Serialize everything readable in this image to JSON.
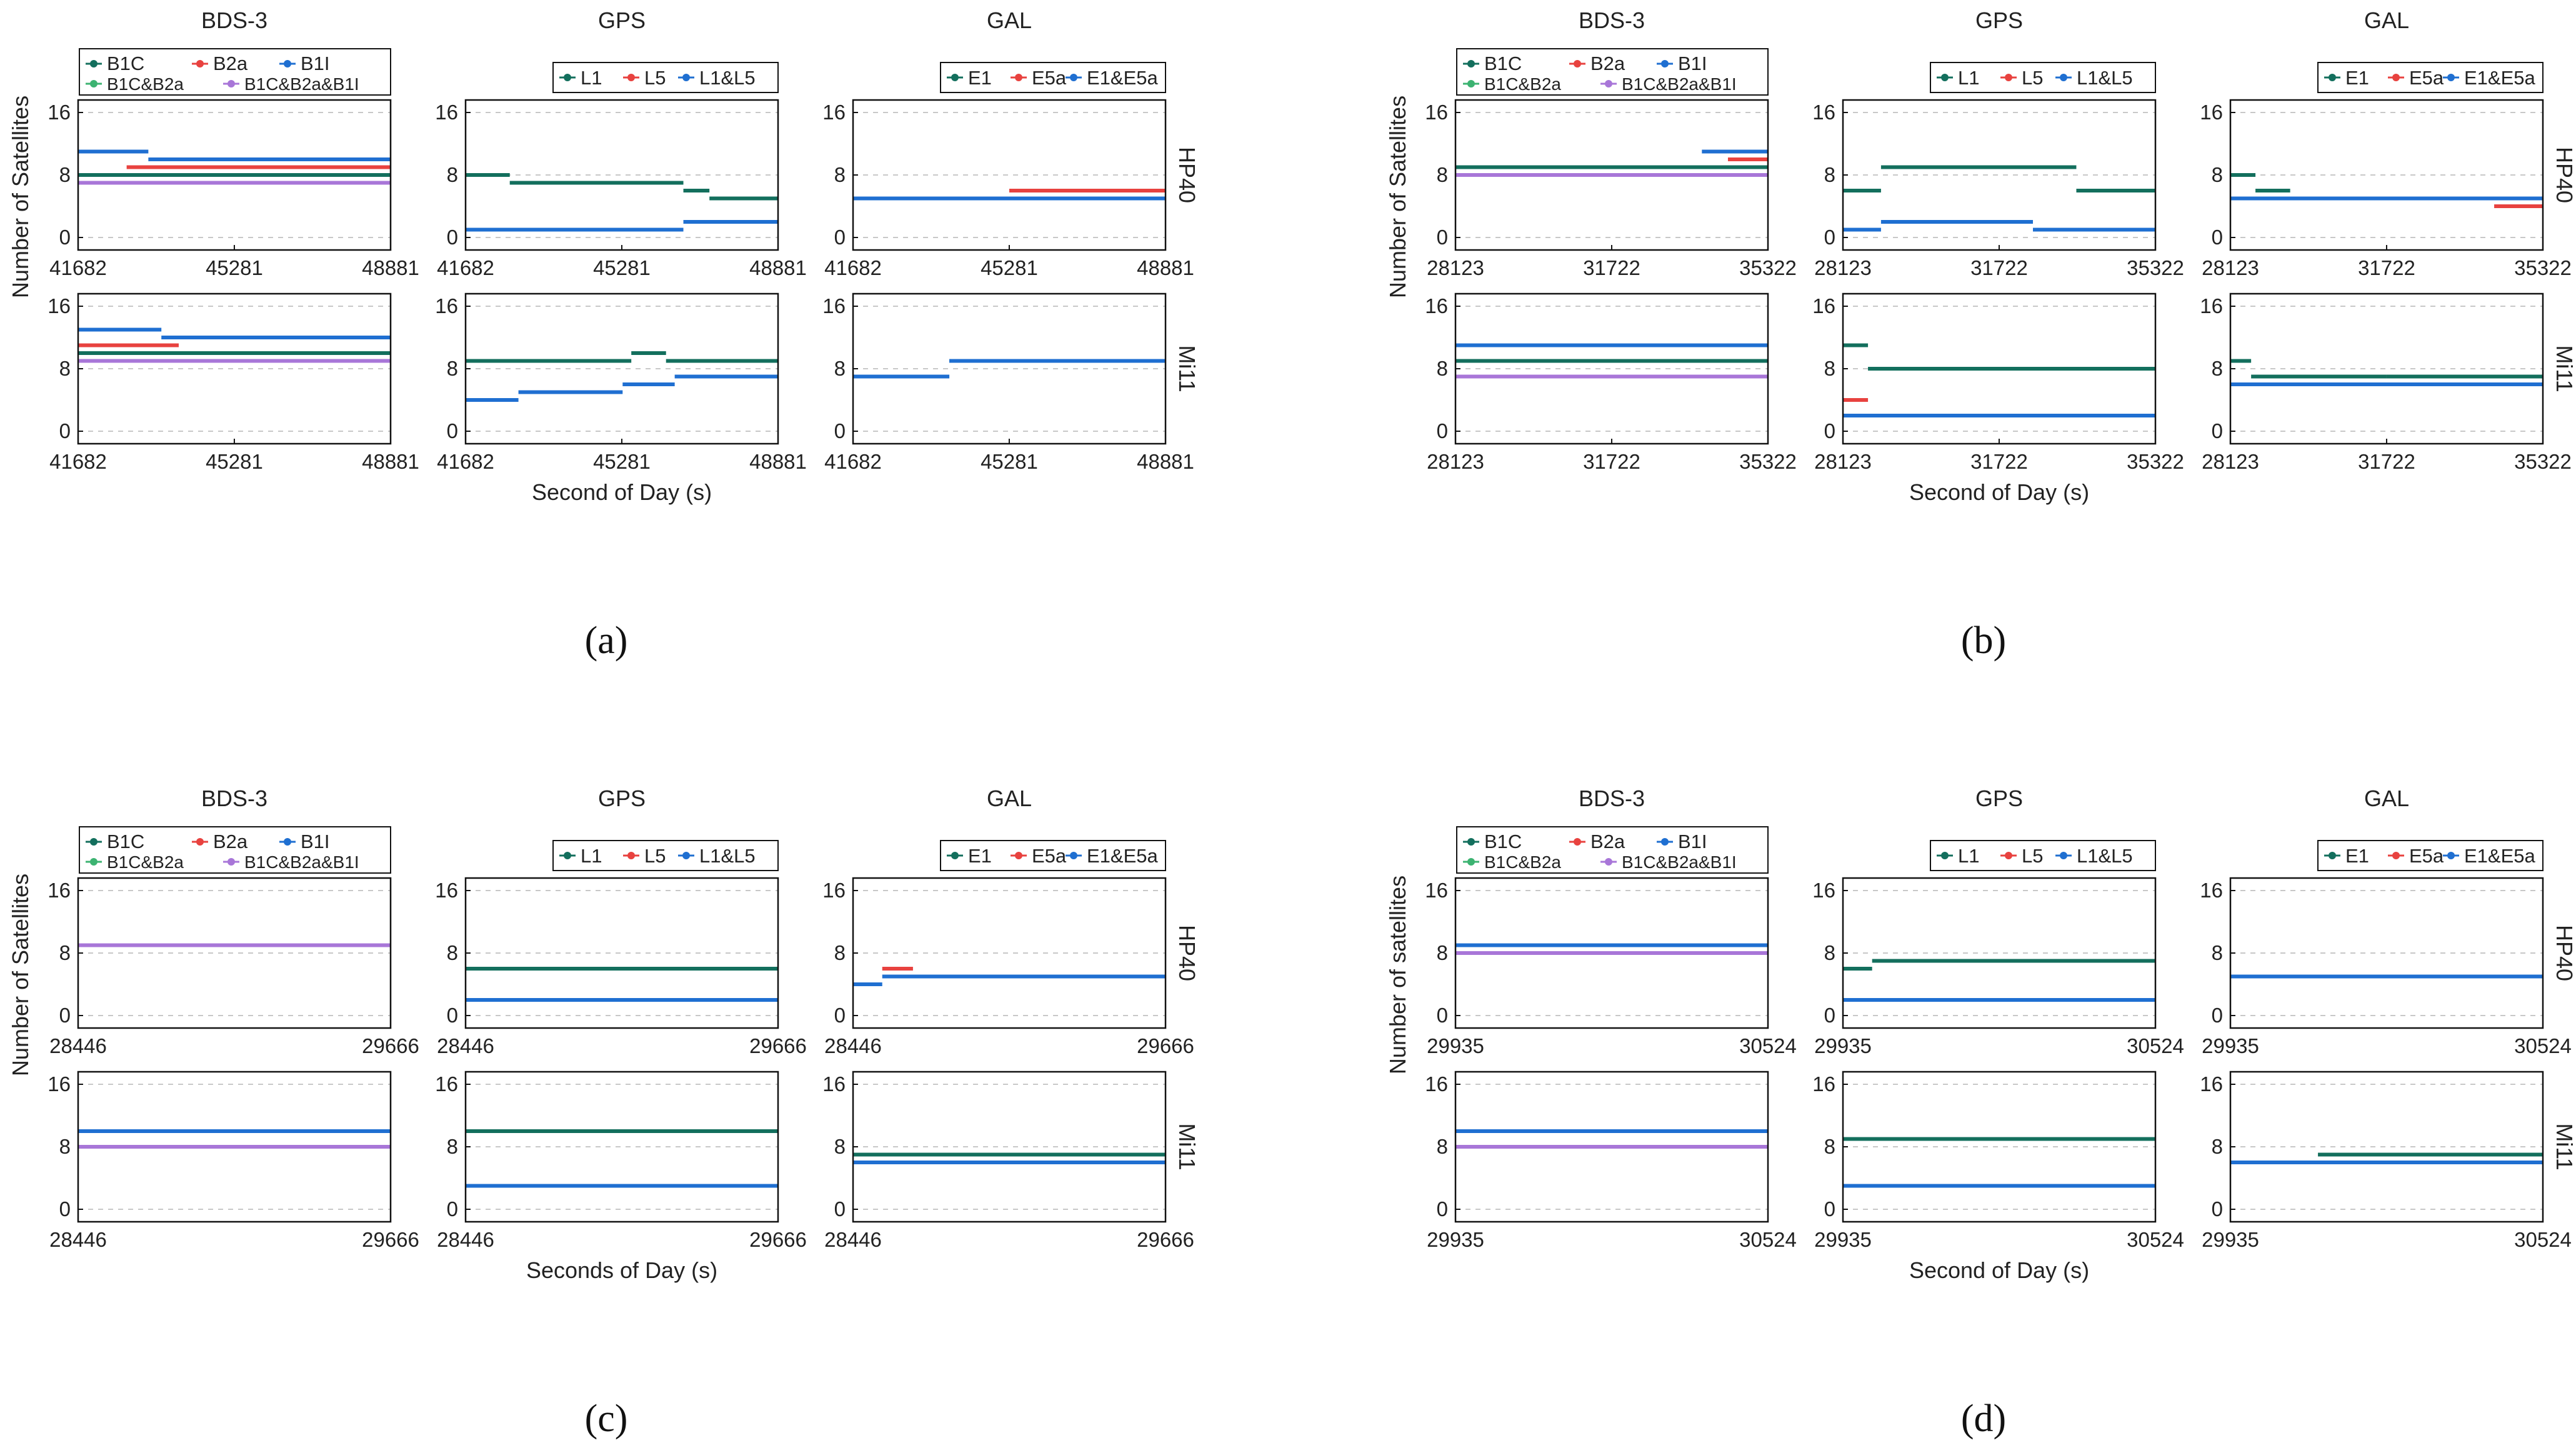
{
  "colors": {
    "B1C": "#136f5d",
    "B2a": "#e8423f",
    "B1I": "#1f6fd1",
    "B1C&B2a": "#3cb371",
    "B1C&B2a&B1I": "#a876d8",
    "L1": "#136f5d",
    "L5": "#e8423f",
    "L1&L5": "#1f6fd1",
    "E1": "#136f5d",
    "E5a": "#e8423f",
    "E1&E5a": "#1f6fd1"
  },
  "column_titles": [
    "BDS-3",
    "GPS",
    "GAL"
  ],
  "receivers": [
    "HP40",
    "Mi11"
  ],
  "y_label_default": "Number of Satellites",
  "y_ticks": [
    "0",
    "8",
    "16"
  ],
  "chart_data": [
    {
      "type": "scatter",
      "panel_label": "(a)",
      "x_label": "Second of Day (s)",
      "y_label": "Number of Satellites",
      "x_range": [
        41682,
        48881
      ],
      "x_ticks": [
        "41682",
        "45281",
        "48881"
      ],
      "ylim": [
        0,
        16
      ],
      "legends": {
        "BDS-3": [
          "B1C",
          "B2a",
          "B1I",
          "B1C&B2a",
          "B1C&B2a&B1I"
        ],
        "GPS": [
          "L1",
          "L5",
          "L1&L5"
        ],
        "GAL": [
          "E1",
          "E5a",
          "E1&E5a"
        ]
      },
      "series": {
        "HP40": {
          "BDS-3": [
            {
              "name": "B1I",
              "segments": [
                [
                  41682,
                  43300,
                  11
                ],
                [
                  43300,
                  48881,
                  10
                ]
              ]
            },
            {
              "name": "B2a",
              "segments": [
                [
                  41682,
                  42800,
                  8
                ],
                [
                  42800,
                  48881,
                  9
                ]
              ]
            },
            {
              "name": "B1C",
              "segments": [
                [
                  41682,
                  48881,
                  8
                ]
              ]
            },
            {
              "name": "B1C&B2a&B1I",
              "segments": [
                [
                  41682,
                  48881,
                  7
                ]
              ]
            }
          ],
          "GPS": [
            {
              "name": "L1",
              "segments": [
                [
                  41682,
                  42700,
                  8
                ],
                [
                  42700,
                  46700,
                  7
                ],
                [
                  46700,
                  47300,
                  6
                ],
                [
                  47300,
                  48881,
                  5
                ]
              ]
            },
            {
              "name": "L1&L5",
              "segments": [
                [
                  41682,
                  46700,
                  1
                ],
                [
                  46700,
                  48881,
                  2
                ]
              ]
            }
          ],
          "GAL": [
            {
              "name": "E5a",
              "segments": [
                [
                  45281,
                  48881,
                  6
                ]
              ]
            },
            {
              "name": "E1&E5a",
              "segments": [
                [
                  41682,
                  48881,
                  5
                ]
              ]
            }
          ]
        },
        "Mi11": {
          "BDS-3": [
            {
              "name": "B1I",
              "segments": [
                [
                  41682,
                  43600,
                  13
                ],
                [
                  43600,
                  48881,
                  12
                ]
              ]
            },
            {
              "name": "B2a",
              "segments": [
                [
                  41682,
                  44000,
                  11
                ],
                [
                  44000,
                  48881,
                  10
                ]
              ]
            },
            {
              "name": "B1C",
              "segments": [
                [
                  41682,
                  48881,
                  10
                ]
              ]
            },
            {
              "name": "B1C&B2a&B1I",
              "segments": [
                [
                  41682,
                  48881,
                  9
                ]
              ]
            }
          ],
          "GPS": [
            {
              "name": "L1",
              "segments": [
                [
                  41682,
                  45500,
                  9
                ],
                [
                  45500,
                  46300,
                  10
                ],
                [
                  46300,
                  48881,
                  9
                ]
              ]
            },
            {
              "name": "L1&L5",
              "segments": [
                [
                  41682,
                  42900,
                  4
                ],
                [
                  42900,
                  45300,
                  5
                ],
                [
                  45300,
                  46500,
                  6
                ],
                [
                  46500,
                  48881,
                  7
                ]
              ]
            }
          ],
          "GAL": [
            {
              "name": "E1",
              "segments": [
                [
                  41682,
                  43900,
                  7
                ],
                [
                  43900,
                  48881,
                  9
                ]
              ]
            },
            {
              "name": "E1&E5a",
              "segments": [
                [
                  41682,
                  43900,
                  7
                ],
                [
                  43900,
                  48881,
                  9
                ]
              ]
            }
          ]
        }
      }
    },
    {
      "type": "scatter",
      "panel_label": "(b)",
      "x_label": "Second of Day (s)",
      "y_label": "Number of Satellites",
      "x_range": [
        28123,
        35322
      ],
      "x_ticks": [
        "28123",
        "31722",
        "35322"
      ],
      "ylim": [
        0,
        16
      ],
      "legends": {
        "BDS-3": [
          "B1C",
          "B2a",
          "B1I",
          "B1C&B2a",
          "B1C&B2a&B1I"
        ],
        "GPS": [
          "L1",
          "L5",
          "L1&L5"
        ],
        "GAL": [
          "E1",
          "E5a",
          "E1&E5a"
        ]
      },
      "series": {
        "HP40": {
          "BDS-3": [
            {
              "name": "B1I",
              "segments": [
                [
                  28123,
                  33800,
                  9
                ],
                [
                  33800,
                  35322,
                  11
                ]
              ]
            },
            {
              "name": "B2a",
              "segments": [
                [
                  34400,
                  35322,
                  10
                ]
              ]
            },
            {
              "name": "B1C",
              "segments": [
                [
                  28123,
                  35322,
                  9
                ]
              ]
            },
            {
              "name": "B1C&B2a&B1I",
              "segments": [
                [
                  28123,
                  35322,
                  8
                ]
              ]
            }
          ],
          "GPS": [
            {
              "name": "L1",
              "segments": [
                [
                  28123,
                  29000,
                  6
                ],
                [
                  29000,
                  33500,
                  9
                ],
                [
                  33500,
                  35322,
                  6
                ]
              ]
            },
            {
              "name": "L1&L5",
              "segments": [
                [
                  28123,
                  29000,
                  1
                ],
                [
                  29000,
                  32500,
                  2
                ],
                [
                  32500,
                  35322,
                  1
                ]
              ]
            }
          ],
          "GAL": [
            {
              "name": "E1",
              "segments": [
                [
                  28123,
                  28700,
                  8
                ],
                [
                  28700,
                  29500,
                  6
                ]
              ]
            },
            {
              "name": "E5a",
              "segments": [
                [
                  34200,
                  35322,
                  4
                ]
              ]
            },
            {
              "name": "E1&E5a",
              "segments": [
                [
                  28123,
                  35322,
                  5
                ]
              ]
            }
          ]
        },
        "Mi11": {
          "BDS-3": [
            {
              "name": "B1I",
              "segments": [
                [
                  28123,
                  35322,
                  11
                ]
              ]
            },
            {
              "name": "B2a",
              "segments": [
                [
                  28123,
                  35322,
                  9
                ]
              ]
            },
            {
              "name": "B1C",
              "segments": [
                [
                  28123,
                  35322,
                  9
                ]
              ]
            },
            {
              "name": "B1C&B2a&B1I",
              "segments": [
                [
                  28123,
                  35322,
                  7
                ]
              ]
            }
          ],
          "GPS": [
            {
              "name": "L1",
              "segments": [
                [
                  28123,
                  28700,
                  11
                ],
                [
                  28700,
                  35322,
                  8
                ]
              ]
            },
            {
              "name": "L5",
              "segments": [
                [
                  28123,
                  28700,
                  4
                ]
              ]
            },
            {
              "name": "L1&L5",
              "segments": [
                [
                  28123,
                  35322,
                  2
                ]
              ]
            }
          ],
          "GAL": [
            {
              "name": "E1",
              "segments": [
                [
                  28123,
                  28600,
                  9
                ],
                [
                  28600,
                  31722,
                  7
                ],
                [
                  31722,
                  35322,
                  7
                ]
              ]
            },
            {
              "name": "E1&E5a",
              "segments": [
                [
                  28123,
                  35322,
                  6
                ]
              ]
            }
          ]
        }
      }
    },
    {
      "type": "scatter",
      "panel_label": "(c)",
      "x_label": "Seconds of Day (s)",
      "y_label": "Number of Satellites",
      "x_range": [
        28446,
        29666
      ],
      "x_ticks": [
        "28446",
        "29666"
      ],
      "ylim": [
        0,
        16
      ],
      "legends": {
        "BDS-3": [
          "B1C",
          "B2a",
          "B1I",
          "B1C&B2a",
          "B1C&B2a&B1I"
        ],
        "GPS": [
          "L1",
          "L5",
          "L1&L5"
        ],
        "GAL": [
          "E1",
          "E5a",
          "E1&E5a"
        ]
      },
      "series": {
        "HP40": {
          "BDS-3": [
            {
              "name": "B1I",
              "segments": [
                [
                  28446,
                  29666,
                  9
                ]
              ]
            },
            {
              "name": "B1C&B2a&B1I",
              "segments": [
                [
                  28446,
                  29666,
                  9
                ]
              ]
            }
          ],
          "GPS": [
            {
              "name": "L1",
              "segments": [
                [
                  28446,
                  29666,
                  6
                ]
              ]
            },
            {
              "name": "L1&L5",
              "segments": [
                [
                  28446,
                  29666,
                  2
                ]
              ]
            }
          ],
          "GAL": [
            {
              "name": "E5a",
              "segments": [
                [
                  28560,
                  28680,
                  6
                ]
              ]
            },
            {
              "name": "E1&E5a",
              "segments": [
                [
                  28446,
                  28560,
                  4
                ],
                [
                  28560,
                  29666,
                  5
                ]
              ]
            }
          ]
        },
        "Mi11": {
          "BDS-3": [
            {
              "name": "B1I",
              "segments": [
                [
                  28446,
                  29666,
                  10
                ]
              ]
            },
            {
              "name": "B1C&B2a&B1I",
              "segments": [
                [
                  28446,
                  29666,
                  8
                ]
              ]
            }
          ],
          "GPS": [
            {
              "name": "L1",
              "segments": [
                [
                  28446,
                  29666,
                  10
                ]
              ]
            },
            {
              "name": "L1&L5",
              "segments": [
                [
                  28446,
                  29666,
                  3
                ]
              ]
            }
          ],
          "GAL": [
            {
              "name": "E1",
              "segments": [
                [
                  28446,
                  29666,
                  7
                ]
              ]
            },
            {
              "name": "E1&E5a",
              "segments": [
                [
                  28446,
                  29666,
                  6
                ]
              ]
            }
          ]
        }
      }
    },
    {
      "type": "scatter",
      "panel_label": "(d)",
      "x_label": "Second of Day (s)",
      "y_label": "Number of satellites",
      "x_range": [
        29935,
        30524
      ],
      "x_ticks": [
        "29935",
        "30524"
      ],
      "ylim": [
        0,
        16
      ],
      "legends": {
        "BDS-3": [
          "B1C",
          "B2a",
          "B1I",
          "B1C&B2a",
          "B1C&B2a&B1I"
        ],
        "GPS": [
          "L1",
          "L5",
          "L1&L5"
        ],
        "GAL": [
          "E1",
          "E5a",
          "E1&E5a"
        ]
      },
      "series": {
        "HP40": {
          "BDS-3": [
            {
              "name": "B1I",
              "segments": [
                [
                  29935,
                  30524,
                  9
                ]
              ]
            },
            {
              "name": "B1C&B2a&B1I",
              "segments": [
                [
                  29935,
                  30524,
                  8
                ]
              ]
            }
          ],
          "GPS": [
            {
              "name": "L1",
              "segments": [
                [
                  29935,
                  29990,
                  6
                ],
                [
                  29990,
                  30524,
                  7
                ]
              ]
            },
            {
              "name": "L1&L5",
              "segments": [
                [
                  29935,
                  30524,
                  2
                ]
              ]
            }
          ],
          "GAL": [
            {
              "name": "E5a",
              "segments": [
                [
                  30200,
                  30300,
                  5
                ]
              ]
            },
            {
              "name": "E1&E5a",
              "segments": [
                [
                  29935,
                  30524,
                  5
                ]
              ]
            }
          ]
        },
        "Mi11": {
          "BDS-3": [
            {
              "name": "B1I",
              "segments": [
                [
                  29935,
                  30524,
                  10
                ]
              ]
            },
            {
              "name": "B1C&B2a&B1I",
              "segments": [
                [
                  29935,
                  30524,
                  8
                ]
              ]
            }
          ],
          "GPS": [
            {
              "name": "L1",
              "segments": [
                [
                  29935,
                  30524,
                  9
                ]
              ]
            },
            {
              "name": "L1&L5",
              "segments": [
                [
                  29935,
                  30524,
                  3
                ]
              ]
            }
          ],
          "GAL": [
            {
              "name": "E1",
              "segments": [
                [
                  30100,
                  30524,
                  7
                ]
              ]
            },
            {
              "name": "E1&E5a",
              "segments": [
                [
                  29935,
                  30524,
                  6
                ]
              ]
            }
          ]
        }
      }
    }
  ]
}
